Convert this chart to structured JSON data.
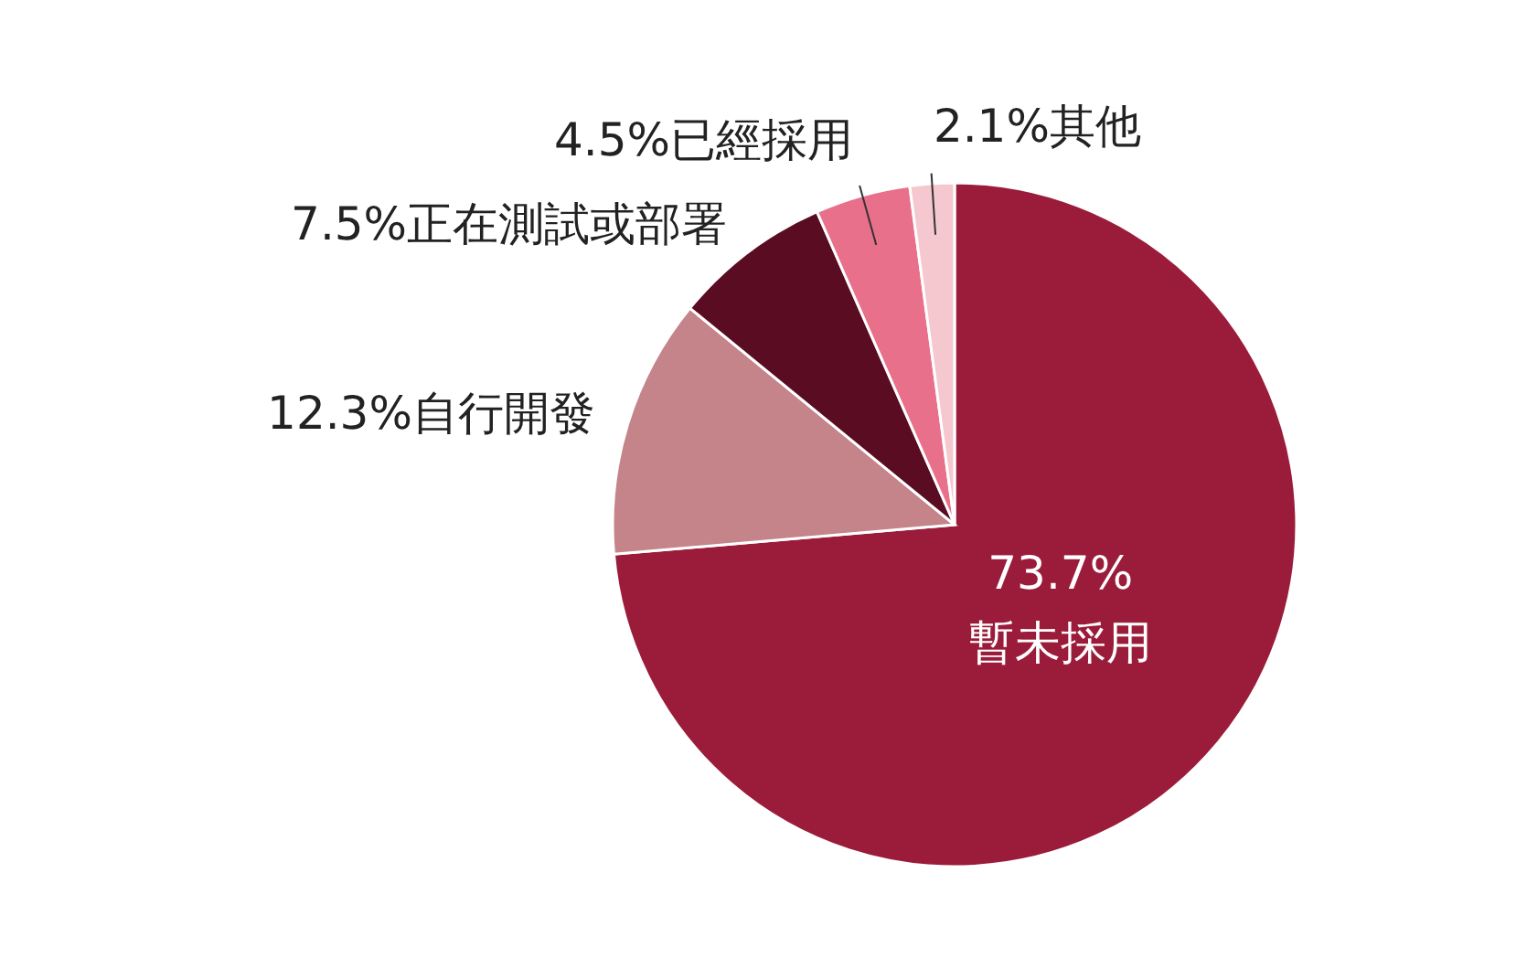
{
  "chart_data": {
    "type": "pie",
    "categories": [
      "暫未採用",
      "自行開發",
      "正在測試或部署",
      "已經採用",
      "其他"
    ],
    "values": [
      73.7,
      12.3,
      7.5,
      4.5,
      2.1
    ],
    "colors": [
      "#9b1c3a",
      "#c4848a",
      "#5a0c22",
      "#e8708a",
      "#f5c8d0"
    ],
    "value_labels": [
      "73.7%",
      "12.3%",
      "7.5%",
      "4.5%",
      "2.1%"
    ],
    "legend": false
  }
}
